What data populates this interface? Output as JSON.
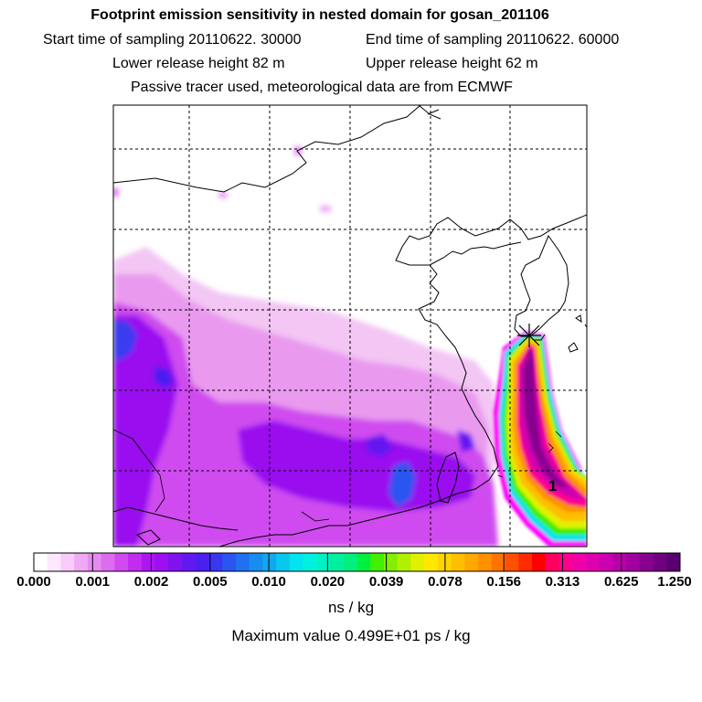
{
  "titles": {
    "line1": "Footprint emission sensitivity in nested domain for gosan_201106",
    "line2_start": "Start time of sampling 20110622. 30000",
    "line2_end": "End time of sampling 20110622. 60000",
    "line3_lower": "Lower release height   82 m",
    "line3_upper": "Upper release height   62 m",
    "line4": "Passive tracer used, meteorological data are from ECMWF"
  },
  "map": {
    "station_label": "1",
    "release_marker": "x-mark",
    "grid_lines": true
  },
  "colorbar": {
    "labels": [
      "0.000",
      "0.001",
      "0.002",
      "0.005",
      "0.010",
      "0.020",
      "0.039",
      "0.078",
      "0.156",
      "0.313",
      "0.625",
      "1.250"
    ],
    "colors": [
      "#ffffff",
      "#fde8fd",
      "#f8cbf8",
      "#efaaf3",
      "#e58bf0",
      "#dd6cf0",
      "#d14af0",
      "#c22cf0",
      "#ad16f0",
      "#9b0ff0",
      "#8012f0",
      "#6418f0",
      "#4a1ff0",
      "#3838f0",
      "#2a55f0",
      "#2070f0",
      "#1a8cf0",
      "#10a8f0",
      "#08c8f0",
      "#00e4f0",
      "#00f0e0",
      "#00f0c0",
      "#00f0a0",
      "#00f080",
      "#00f040",
      "#40f000",
      "#80f000",
      "#b0f000",
      "#e0f000",
      "#ffe800",
      "#ffd400",
      "#ffbe00",
      "#ffa800",
      "#ff9000",
      "#ff7400",
      "#ff5000",
      "#ff2c00",
      "#ff0000",
      "#ff0060",
      "#ff0090",
      "#f000a8",
      "#e000b0",
      "#cc00b0",
      "#b800a8",
      "#a000a0",
      "#880090",
      "#700080",
      "#580070"
    ],
    "units": "ns / kg"
  },
  "max_value_text": "Maximum value  0.499E+01 ps / kg"
}
